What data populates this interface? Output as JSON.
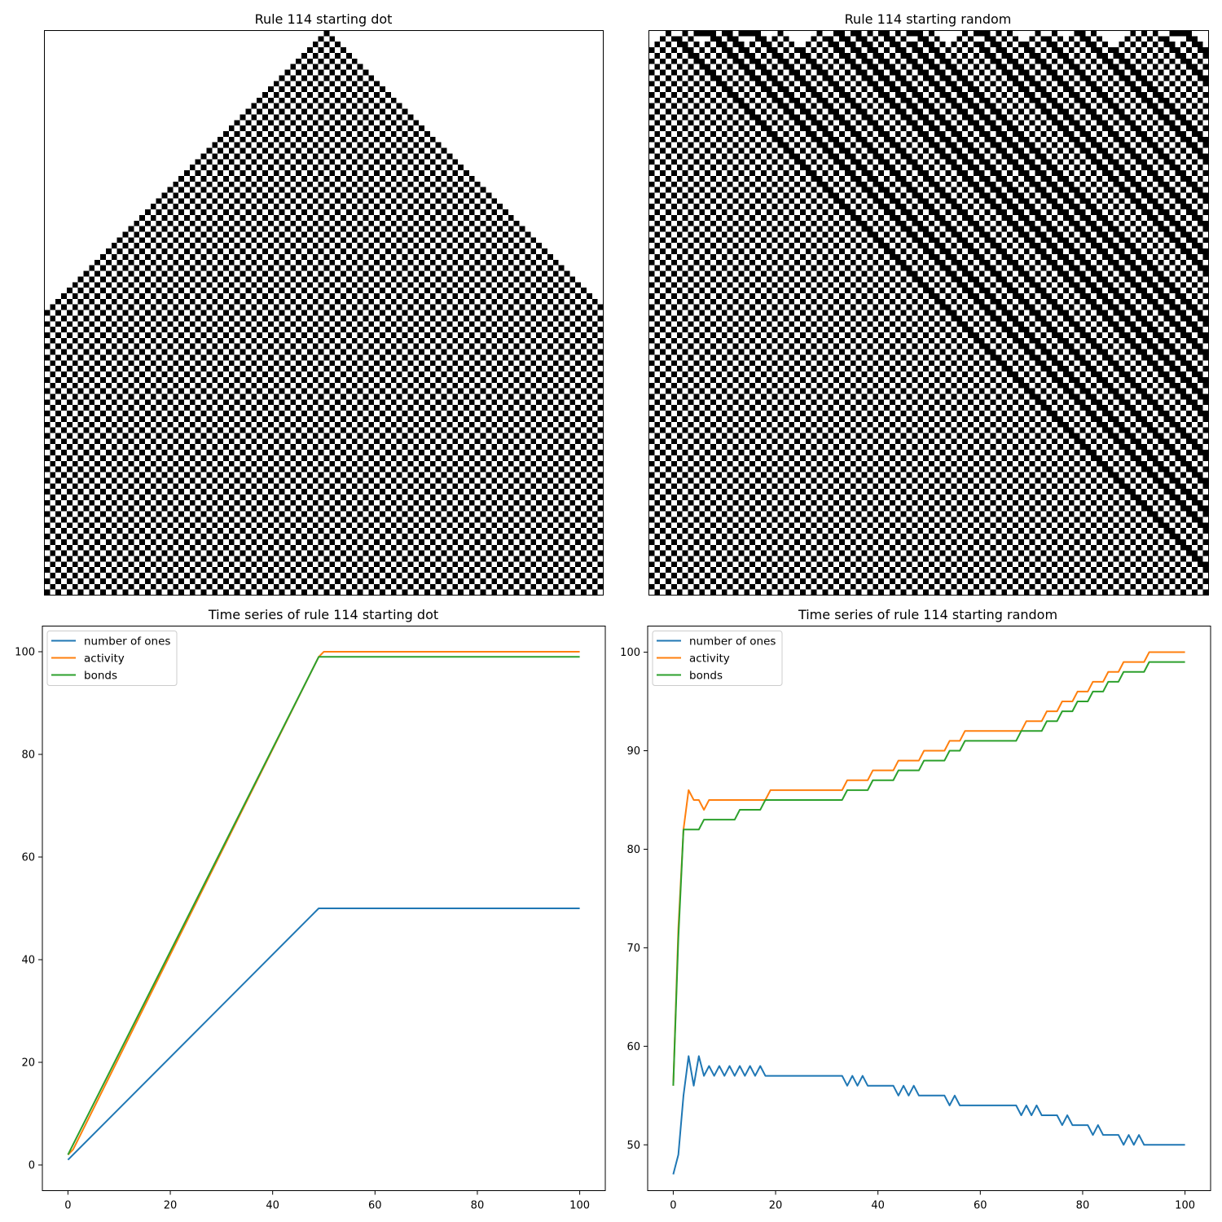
{
  "chart_data": [
    {
      "type": "heatmap",
      "title": "Rule 114 starting dot",
      "rule": 114,
      "initial_condition": "dot",
      "cells_per_row": 100,
      "rows": 101,
      "colors": {
        "on": "#000000",
        "off": "#ffffff"
      }
    },
    {
      "type": "heatmap",
      "title": "Rule 114 starting random",
      "rule": 114,
      "initial_condition": "random",
      "cells_per_row": 100,
      "rows": 101,
      "colors": {
        "on": "#000000",
        "off": "#ffffff"
      }
    },
    {
      "type": "line",
      "title": "Time series of rule 114 starting dot",
      "xlabel": "",
      "ylabel": "",
      "xlim": [
        -5,
        105
      ],
      "ylim": [
        -5,
        105
      ],
      "xticks": [
        0,
        20,
        40,
        60,
        80,
        100
      ],
      "yticks": [
        0,
        20,
        40,
        60,
        80,
        100
      ],
      "legend": "upper-left",
      "series": [
        {
          "name": "number of ones",
          "color": "#1f77b4",
          "points": [
            [
              0,
              1
            ],
            [
              49,
              50
            ],
            [
              100,
              50
            ]
          ]
        },
        {
          "name": "activity",
          "color": "#ff7f0e",
          "points": [
            [
              0,
              2
            ],
            [
              1,
              3
            ],
            [
              49,
              99
            ],
            [
              50,
              100
            ],
            [
              100,
              100
            ]
          ]
        },
        {
          "name": "bonds",
          "color": "#2ca02c",
          "points": [
            [
              0,
              2
            ],
            [
              49,
              99
            ],
            [
              100,
              99
            ]
          ]
        }
      ]
    },
    {
      "type": "line",
      "title": "Time series of rule 114 starting random",
      "xlabel": "",
      "ylabel": "",
      "xlim": [
        -5,
        105
      ],
      "ylim": [
        45.35,
        102.65
      ],
      "xticks": [
        0,
        20,
        40,
        60,
        80,
        100
      ],
      "yticks": [
        50,
        60,
        70,
        80,
        90,
        100
      ],
      "legend": "upper-left",
      "series": [
        {
          "name": "number of ones",
          "color": "#1f77b4",
          "values": [
            47,
            49,
            55,
            59,
            56,
            59,
            57,
            58,
            57,
            58,
            57,
            58,
            57,
            58,
            57,
            58,
            57,
            58,
            57,
            57,
            57,
            57,
            57,
            57,
            57,
            57,
            57,
            57,
            57,
            57,
            57,
            57,
            57,
            57,
            56,
            57,
            56,
            57,
            56,
            56,
            56,
            56,
            56,
            56,
            55,
            56,
            55,
            56,
            55,
            55,
            55,
            55,
            55,
            55,
            54,
            55,
            54,
            54,
            54,
            54,
            54,
            54,
            54,
            54,
            54,
            54,
            54,
            54,
            53,
            54,
            53,
            54,
            53,
            53,
            53,
            53,
            52,
            53,
            52,
            52,
            52,
            52,
            51,
            52,
            51,
            51,
            51,
            51,
            50,
            51,
            50,
            51,
            50,
            50,
            50,
            50,
            50,
            50,
            50,
            50,
            50
          ]
        },
        {
          "name": "activity",
          "color": "#ff7f0e",
          "values": [
            56,
            72,
            82,
            86,
            85,
            85,
            84,
            85,
            85,
            85,
            85,
            85,
            85,
            85,
            85,
            85,
            85,
            85,
            85,
            86,
            86,
            86,
            86,
            86,
            86,
            86,
            86,
            86,
            86,
            86,
            86,
            86,
            86,
            86,
            87,
            87,
            87,
            87,
            87,
            88,
            88,
            88,
            88,
            88,
            89,
            89,
            89,
            89,
            89,
            90,
            90,
            90,
            90,
            90,
            91,
            91,
            91,
            92,
            92,
            92,
            92,
            92,
            92,
            92,
            92,
            92,
            92,
            92,
            92,
            93,
            93,
            93,
            93,
            94,
            94,
            94,
            95,
            95,
            95,
            96,
            96,
            96,
            97,
            97,
            97,
            98,
            98,
            98,
            99,
            99,
            99,
            99,
            99,
            100,
            100,
            100,
            100,
            100,
            100,
            100,
            100
          ]
        },
        {
          "name": "bonds",
          "color": "#2ca02c",
          "values": [
            56,
            71,
            82,
            82,
            82,
            82,
            83,
            83,
            83,
            83,
            83,
            83,
            83,
            84,
            84,
            84,
            84,
            84,
            85,
            85,
            85,
            85,
            85,
            85,
            85,
            85,
            85,
            85,
            85,
            85,
            85,
            85,
            85,
            85,
            86,
            86,
            86,
            86,
            86,
            87,
            87,
            87,
            87,
            87,
            88,
            88,
            88,
            88,
            88,
            89,
            89,
            89,
            89,
            89,
            90,
            90,
            90,
            91,
            91,
            91,
            91,
            91,
            91,
            91,
            91,
            91,
            91,
            91,
            92,
            92,
            92,
            92,
            92,
            93,
            93,
            93,
            94,
            94,
            94,
            95,
            95,
            95,
            96,
            96,
            96,
            97,
            97,
            97,
            98,
            98,
            98,
            98,
            98,
            99,
            99,
            99,
            99,
            99,
            99,
            99,
            99
          ]
        }
      ]
    }
  ]
}
